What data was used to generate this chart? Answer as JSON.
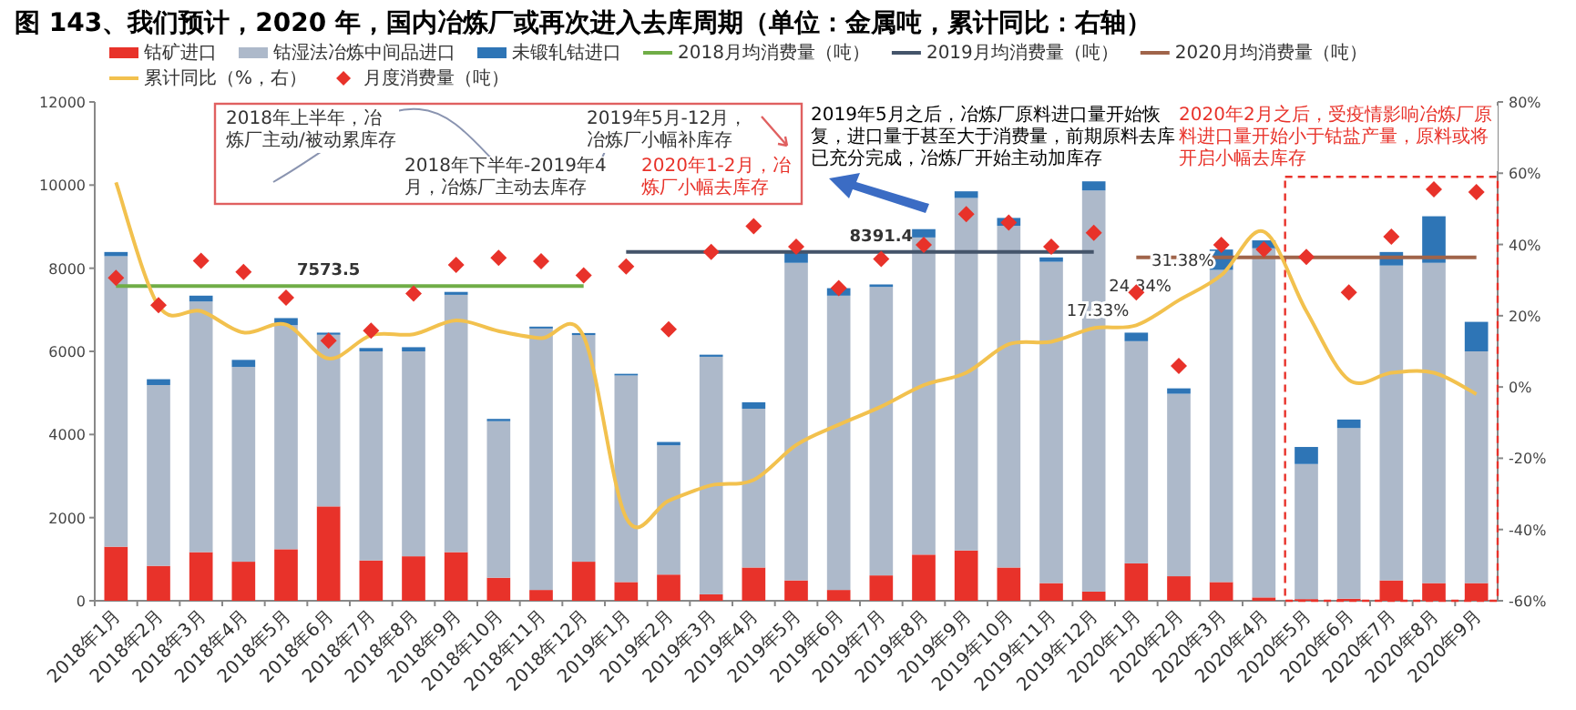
{
  "chart_data": {
    "type": "bar",
    "title": "图 143、我们预计，2020 年，国内冶炼厂或再次进入去库周期（单位：金属吨，累计同比：右轴）",
    "categories": [
      "2018年1月",
      "2018年2月",
      "2018年3月",
      "2018年4月",
      "2018年5月",
      "2018年6月",
      "2018年7月",
      "2018年8月",
      "2018年9月",
      "2018年10月",
      "2018年11月",
      "2018年12月",
      "2019年1月",
      "2019年2月",
      "2019年3月",
      "2019年4月",
      "2019年5月",
      "2019年6月",
      "2019年7月",
      "2019年8月",
      "2019年9月",
      "2019年10月",
      "2019年11月",
      "2019年12月",
      "2020年1月",
      "2020年2月",
      "2020年3月",
      "2020年4月",
      "2020年5月",
      "2020年6月",
      "2020年7月",
      "2020年8月",
      "2020年9月"
    ],
    "stacked": true,
    "series": [
      {
        "name": "钴矿进口",
        "color": "#e8322a",
        "values": [
          1300,
          840,
          1170,
          940,
          1240,
          2270,
          970,
          1070,
          1170,
          555,
          260,
          940,
          450,
          630,
          155,
          800,
          490,
          260,
          610,
          1110,
          1210,
          800,
          425,
          220,
          900,
          590,
          450,
          80,
          40,
          50,
          490,
          425,
          425
        ]
      },
      {
        "name": "钴湿法冶炼中间品进口",
        "color": "#adb9ca",
        "values": [
          6990,
          4350,
          6030,
          4685,
          5390,
          4130,
          5030,
          4930,
          6190,
          3765,
          6290,
          5450,
          4970,
          3110,
          5715,
          3820,
          7640,
          7080,
          6940,
          7630,
          8480,
          8220,
          7730,
          9650,
          5345,
          4390,
          7510,
          8400,
          3250,
          4105,
          7575,
          7705,
          5575
        ]
      },
      {
        "name": "未锻轧钴进口",
        "color": "#2e75b6",
        "values": [
          100,
          140,
          140,
          170,
          170,
          50,
          80,
          100,
          70,
          55,
          45,
          50,
          40,
          80,
          50,
          155,
          260,
          180,
          60,
          200,
          160,
          190,
          105,
          220,
          205,
          130,
          490,
          190,
          410,
          205,
          325,
          1120,
          710
        ]
      },
      {
        "name": "2018月均消费量（吨）",
        "type": "line",
        "color": "#70ad47",
        "values": [
          7573.5,
          7573.5,
          7573.5,
          7573.5,
          7573.5,
          7573.5,
          7573.5,
          7573.5,
          7573.5,
          7573.5,
          7573.5,
          7573.5,
          null,
          null,
          null,
          null,
          null,
          null,
          null,
          null,
          null,
          null,
          null,
          null,
          null,
          null,
          null,
          null,
          null,
          null,
          null,
          null,
          null
        ]
      },
      {
        "name": "2019月均消费量（吨）",
        "type": "line",
        "color": "#44546a",
        "values": [
          null,
          null,
          null,
          null,
          null,
          null,
          null,
          null,
          null,
          null,
          null,
          null,
          8391.4,
          8391.4,
          8391.4,
          8391.4,
          8391.4,
          8391.4,
          8391.4,
          8391.4,
          8391.4,
          8391.4,
          8391.4,
          8391.4,
          null,
          null,
          null,
          null,
          null,
          null,
          null,
          null,
          null
        ]
      },
      {
        "name": "2020月均消费量（吨）",
        "type": "line",
        "color": "#a0644a",
        "values": [
          null,
          null,
          null,
          null,
          null,
          null,
          null,
          null,
          null,
          null,
          null,
          null,
          null,
          null,
          null,
          null,
          null,
          null,
          null,
          null,
          null,
          null,
          null,
          null,
          8260,
          8260,
          8260,
          8260,
          8260,
          8260,
          8260,
          8260,
          8260
        ]
      },
      {
        "name": "累计同比（%，右）",
        "type": "line",
        "axis": "y2",
        "color": "#f2c14e",
        "values": [
          57.4,
          22.8,
          21.3,
          15.3,
          17.5,
          8,
          14.5,
          14.8,
          18.7,
          15.7,
          13.7,
          14.2,
          -36.7,
          -31.9,
          -27.6,
          -26.1,
          -16.3,
          -10.6,
          -5.5,
          0.5,
          4,
          12,
          12.7,
          16.5,
          17.33,
          24.34,
          31.38,
          43.6,
          21.3,
          2,
          4,
          4,
          -2
        ],
        "value_labels": [
          null,
          null,
          null,
          null,
          null,
          null,
          null,
          null,
          null,
          null,
          null,
          null,
          null,
          null,
          null,
          null,
          null,
          null,
          null,
          null,
          null,
          null,
          null,
          null,
          "17.33%",
          "24.34%",
          "31.38%",
          null,
          null,
          null,
          null,
          null,
          null
        ]
      },
      {
        "name": "月度消费量（吨）",
        "type": "scatter",
        "marker": "diamond",
        "color": "#e8322a",
        "values": [
          7770,
          7110,
          8180,
          7910,
          7290,
          6260,
          6500,
          7390,
          8080,
          8250,
          8170,
          7830,
          8040,
          6530,
          8390,
          9010,
          8520,
          7520,
          8220,
          8560,
          9300,
          9100,
          8520,
          8850,
          7420,
          5650,
          8560,
          8450,
          8270,
          7420,
          8760,
          9900,
          9830
        ]
      }
    ],
    "ylim": [
      0,
      12000
    ],
    "yticks": [
      0,
      2000,
      4000,
      6000,
      8000,
      10000,
      12000
    ],
    "y2lim": [
      -60,
      80
    ],
    "y2ticks": [
      {
        "value": -60,
        "label": "-60%"
      },
      {
        "value": -40,
        "label": "-40%"
      },
      {
        "value": -20,
        "label": "-20%"
      },
      {
        "value": 0,
        "label": "0%"
      },
      {
        "value": 20,
        "label": "20%"
      },
      {
        "value": 40,
        "label": "40%"
      },
      {
        "value": 60,
        "label": "60%"
      },
      {
        "value": 80,
        "label": "80%"
      }
    ],
    "legend": "top",
    "annotations": [
      "2020年2月之后，受疫情影响冶炼厂原料进口量开始小于钴盐产量，原料或将开启小幅去库存",
      "2018年上半年，冶炼厂主动/被动累库存",
      "2018年下半年-2019年4月，冶炼厂主动去库存",
      "2019年5月-12月，冶炼厂小幅补库存",
      "2020年1-2月，冶炼厂小幅去库存",
      "2019年5月之后，冶炼厂原料进口量开始恢复，进口量于甚至大于消费量，前期原料去库已充分完成，冶炼厂开始主动加库存",
      {
        "text": "7573.5",
        "x": "2018年6月",
        "y": 7573.5
      },
      {
        "text": "8391.4",
        "x": "2019年7月",
        "y": 8391.4
      }
    ]
  }
}
